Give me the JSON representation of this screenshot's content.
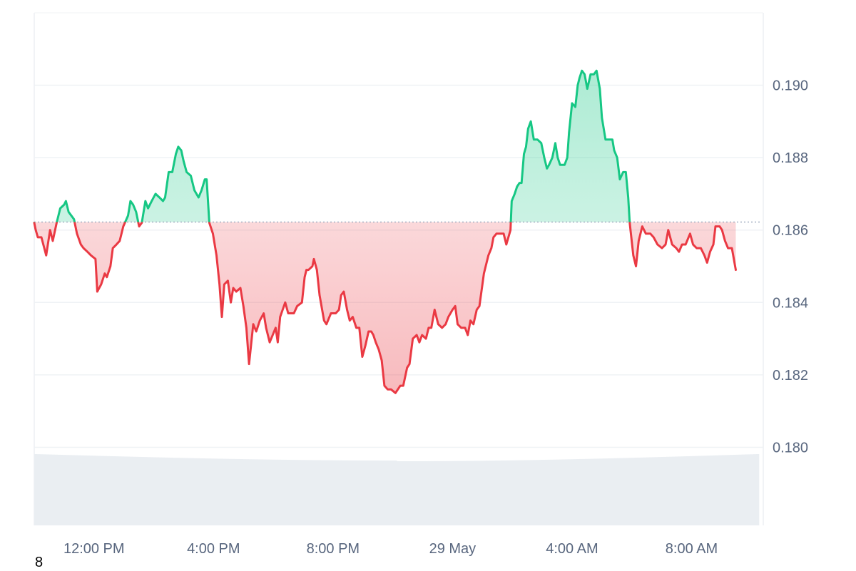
{
  "colors": {
    "up": "#16c784",
    "down": "#ea3943",
    "grid": "#eff2f5",
    "baseline": "#a6b0c3",
    "volume": "#eaeef2",
    "axis_text": "#58667e"
  },
  "corner_label": "8",
  "chart_data": {
    "type": "area",
    "baseline_value": 0.18622,
    "ylim": [
      0.178,
      0.1921
    ],
    "yticks": [
      0.18,
      0.182,
      0.184,
      0.186,
      0.188,
      0.19
    ],
    "ytick_labels": [
      "0.180",
      "0.182",
      "0.184",
      "0.186",
      "0.188",
      "0.190"
    ],
    "xlim": [
      0,
      24.4
    ],
    "xticks": [
      {
        "t": 2.0,
        "label": "12:00 PM"
      },
      {
        "t": 6.0,
        "label": "4:00 PM"
      },
      {
        "t": 10.0,
        "label": "8:00 PM"
      },
      {
        "t": 14.0,
        "label": "29 May"
      },
      {
        "t": 18.0,
        "label": "4:00 AM"
      },
      {
        "t": 22.0,
        "label": "8:00 AM"
      }
    ],
    "series": [
      {
        "points": [
          [
            0.0,
            0.1862
          ],
          [
            0.05,
            0.186
          ],
          [
            0.12,
            0.1858
          ],
          [
            0.24,
            0.1858
          ],
          [
            0.4,
            0.1853
          ],
          [
            0.53,
            0.186
          ],
          [
            0.62,
            0.1857
          ],
          [
            0.75,
            0.1862
          ],
          [
            0.87,
            0.1866
          ],
          [
            1.0,
            0.1867
          ],
          [
            1.06,
            0.1868
          ],
          [
            1.15,
            0.1865
          ],
          [
            1.33,
            0.1863
          ],
          [
            1.43,
            0.1859
          ],
          [
            1.56,
            0.1856
          ],
          [
            1.65,
            0.1855
          ],
          [
            1.78,
            0.1854
          ],
          [
            1.9,
            0.1853
          ],
          [
            2.05,
            0.1852
          ],
          [
            2.11,
            0.1843
          ],
          [
            2.24,
            0.1845
          ],
          [
            2.36,
            0.1848
          ],
          [
            2.43,
            0.1847
          ],
          [
            2.55,
            0.185
          ],
          [
            2.63,
            0.1855
          ],
          [
            2.75,
            0.1856
          ],
          [
            2.86,
            0.1857
          ],
          [
            2.98,
            0.1861
          ],
          [
            3.14,
            0.1864
          ],
          [
            3.22,
            0.1868
          ],
          [
            3.31,
            0.1867
          ],
          [
            3.41,
            0.1865
          ],
          [
            3.51,
            0.1861
          ],
          [
            3.6,
            0.1862
          ],
          [
            3.72,
            0.1868
          ],
          [
            3.81,
            0.1866
          ],
          [
            3.93,
            0.1868
          ],
          [
            4.06,
            0.187
          ],
          [
            4.19,
            0.1869
          ],
          [
            4.31,
            0.1868
          ],
          [
            4.38,
            0.1869
          ],
          [
            4.5,
            0.1876
          ],
          [
            4.62,
            0.1876
          ],
          [
            4.74,
            0.1881
          ],
          [
            4.82,
            0.1883
          ],
          [
            4.92,
            0.1882
          ],
          [
            5.0,
            0.1879
          ],
          [
            5.1,
            0.1876
          ],
          [
            5.24,
            0.1875
          ],
          [
            5.36,
            0.1871
          ],
          [
            5.5,
            0.1869
          ],
          [
            5.6,
            0.1871
          ],
          [
            5.71,
            0.1874
          ],
          [
            5.77,
            0.1874
          ],
          [
            5.86,
            0.1862
          ],
          [
            5.98,
            0.1859
          ],
          [
            6.1,
            0.1853
          ],
          [
            6.2,
            0.1845
          ],
          [
            6.28,
            0.1836
          ],
          [
            6.36,
            0.1845
          ],
          [
            6.48,
            0.1846
          ],
          [
            6.58,
            0.184
          ],
          [
            6.66,
            0.1844
          ],
          [
            6.76,
            0.1843
          ],
          [
            6.9,
            0.1844
          ],
          [
            7.0,
            0.1839
          ],
          [
            7.1,
            0.1833
          ],
          [
            7.19,
            0.1823
          ],
          [
            7.33,
            0.1834
          ],
          [
            7.43,
            0.1832
          ],
          [
            7.55,
            0.1835
          ],
          [
            7.68,
            0.1837
          ],
          [
            7.76,
            0.1833
          ],
          [
            7.88,
            0.1829
          ],
          [
            7.98,
            0.1831
          ],
          [
            8.08,
            0.1833
          ],
          [
            8.15,
            0.1829
          ],
          [
            8.23,
            0.1836
          ],
          [
            8.4,
            0.184
          ],
          [
            8.5,
            0.1837
          ],
          [
            8.69,
            0.1837
          ],
          [
            8.8,
            0.1839
          ],
          [
            8.96,
            0.184
          ],
          [
            9.05,
            0.1847
          ],
          [
            9.11,
            0.1849
          ],
          [
            9.18,
            0.1849
          ],
          [
            9.31,
            0.185
          ],
          [
            9.36,
            0.1852
          ],
          [
            9.46,
            0.1849
          ],
          [
            9.55,
            0.1842
          ],
          [
            9.7,
            0.1835
          ],
          [
            9.78,
            0.1834
          ],
          [
            9.93,
            0.1837
          ],
          [
            10.09,
            0.1837
          ],
          [
            10.2,
            0.1838
          ],
          [
            10.27,
            0.1842
          ],
          [
            10.36,
            0.1843
          ],
          [
            10.47,
            0.1838
          ],
          [
            10.56,
            0.1835
          ],
          [
            10.66,
            0.1836
          ],
          [
            10.78,
            0.1833
          ],
          [
            10.88,
            0.1833
          ],
          [
            10.98,
            0.1825
          ],
          [
            11.08,
            0.1828
          ],
          [
            11.19,
            0.1832
          ],
          [
            11.28,
            0.1832
          ],
          [
            11.35,
            0.1831
          ],
          [
            11.43,
            0.1829
          ],
          [
            11.53,
            0.1827
          ],
          [
            11.63,
            0.1824
          ],
          [
            11.72,
            0.1817
          ],
          [
            11.83,
            0.1816
          ],
          [
            11.94,
            0.1816
          ],
          [
            12.09,
            0.1815
          ],
          [
            12.25,
            0.1817
          ],
          [
            12.35,
            0.1817
          ],
          [
            12.48,
            0.1822
          ],
          [
            12.56,
            0.1823
          ],
          [
            12.67,
            0.183
          ],
          [
            12.8,
            0.1831
          ],
          [
            12.89,
            0.1829
          ],
          [
            12.98,
            0.1831
          ],
          [
            13.11,
            0.183
          ],
          [
            13.2,
            0.1833
          ],
          [
            13.29,
            0.1833
          ],
          [
            13.4,
            0.1838
          ],
          [
            13.52,
            0.1834
          ],
          [
            13.65,
            0.1833
          ],
          [
            13.77,
            0.1834
          ],
          [
            13.86,
            0.1836
          ],
          [
            14.0,
            0.1838
          ],
          [
            14.09,
            0.1839
          ],
          [
            14.17,
            0.1834
          ],
          [
            14.29,
            0.1833
          ],
          [
            14.42,
            0.1833
          ],
          [
            14.51,
            0.1831
          ],
          [
            14.6,
            0.1835
          ],
          [
            14.7,
            0.1834
          ],
          [
            14.81,
            0.1838
          ],
          [
            14.9,
            0.1839
          ],
          [
            15.05,
            0.1848
          ],
          [
            15.2,
            0.1853
          ],
          [
            15.3,
            0.1855
          ],
          [
            15.37,
            0.1858
          ],
          [
            15.47,
            0.1859
          ],
          [
            15.6,
            0.1859
          ],
          [
            15.71,
            0.1859
          ],
          [
            15.8,
            0.1856
          ],
          [
            15.94,
            0.186
          ],
          [
            15.98,
            0.1868
          ],
          [
            16.08,
            0.187
          ],
          [
            16.16,
            0.1872
          ],
          [
            16.24,
            0.1873
          ],
          [
            16.31,
            0.1873
          ],
          [
            16.39,
            0.1881
          ],
          [
            16.46,
            0.1883
          ],
          [
            16.53,
            0.1888
          ],
          [
            16.62,
            0.189
          ],
          [
            16.72,
            0.1885
          ],
          [
            16.84,
            0.1885
          ],
          [
            16.97,
            0.1884
          ],
          [
            17.07,
            0.188
          ],
          [
            17.16,
            0.1877
          ],
          [
            17.23,
            0.1878
          ],
          [
            17.34,
            0.188
          ],
          [
            17.44,
            0.1884
          ],
          [
            17.52,
            0.188
          ],
          [
            17.6,
            0.1878
          ],
          [
            17.75,
            0.1878
          ],
          [
            17.84,
            0.188
          ],
          [
            17.9,
            0.1887
          ],
          [
            18.0,
            0.1895
          ],
          [
            18.11,
            0.1894
          ],
          [
            18.19,
            0.19
          ],
          [
            18.25,
            0.1902
          ],
          [
            18.33,
            0.1904
          ],
          [
            18.42,
            0.1903
          ],
          [
            18.51,
            0.1899
          ],
          [
            18.62,
            0.1903
          ],
          [
            18.73,
            0.1903
          ],
          [
            18.82,
            0.1904
          ],
          [
            18.93,
            0.1899
          ],
          [
            19.0,
            0.1891
          ],
          [
            19.12,
            0.1885
          ],
          [
            19.24,
            0.1885
          ],
          [
            19.35,
            0.1885
          ],
          [
            19.41,
            0.1882
          ],
          [
            19.51,
            0.188
          ],
          [
            19.6,
            0.1874
          ],
          [
            19.71,
            0.1876
          ],
          [
            19.8,
            0.1876
          ],
          [
            19.88,
            0.1869
          ],
          [
            19.93,
            0.1862
          ],
          [
            20.05,
            0.1853
          ],
          [
            20.14,
            0.185
          ],
          [
            20.23,
            0.1857
          ],
          [
            20.35,
            0.1861
          ],
          [
            20.47,
            0.1859
          ],
          [
            20.62,
            0.1859
          ],
          [
            20.73,
            0.1858
          ],
          [
            20.86,
            0.1856
          ],
          [
            21.01,
            0.1855
          ],
          [
            21.13,
            0.1856
          ],
          [
            21.22,
            0.186
          ],
          [
            21.35,
            0.1856
          ],
          [
            21.49,
            0.1855
          ],
          [
            21.58,
            0.1854
          ],
          [
            21.68,
            0.1856
          ],
          [
            21.8,
            0.1856
          ],
          [
            21.95,
            0.1859
          ],
          [
            22.05,
            0.1856
          ],
          [
            22.17,
            0.1855
          ],
          [
            22.31,
            0.1855
          ],
          [
            22.43,
            0.1853
          ],
          [
            22.52,
            0.1851
          ],
          [
            22.62,
            0.1854
          ],
          [
            22.73,
            0.1856
          ],
          [
            22.8,
            0.1861
          ],
          [
            22.94,
            0.1861
          ],
          [
            23.02,
            0.186
          ],
          [
            23.12,
            0.1857
          ],
          [
            23.22,
            0.1855
          ],
          [
            23.35,
            0.1855
          ],
          [
            23.48,
            0.1849
          ]
        ]
      }
    ]
  }
}
